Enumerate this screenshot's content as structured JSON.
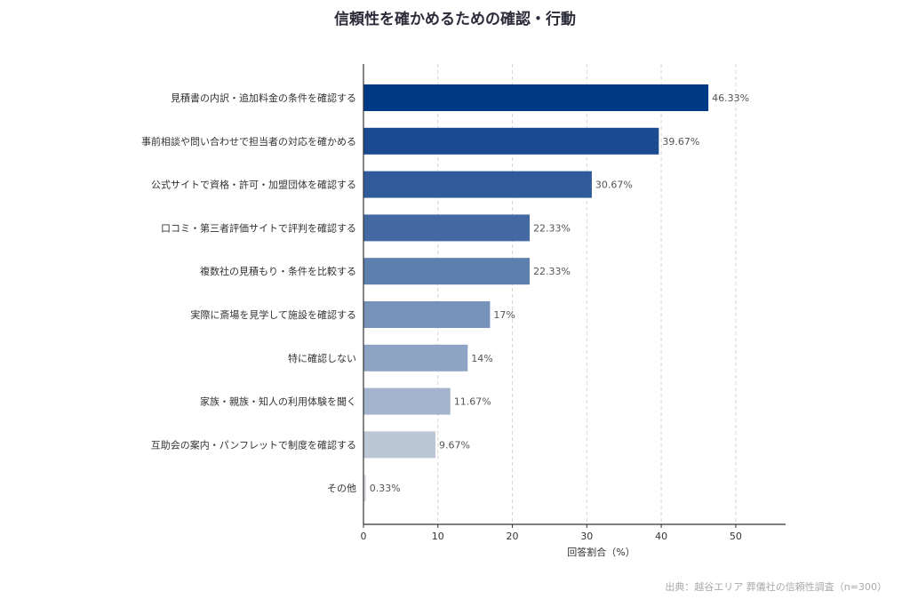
{
  "chart_data": {
    "type": "bar",
    "orientation": "horizontal",
    "title": "信頼性を確かめるための確認・行動",
    "xlabel": "回答割合（%）",
    "ylabel": "",
    "xlim": [
      0,
      56.7
    ],
    "xticks": [
      0,
      10,
      20,
      30,
      40,
      50
    ],
    "grid": "vertical-dashed",
    "categories": [
      "見積書の内訳・追加料金の条件を確認する",
      "事前相談や問い合わせで担当者の対応を確かめる",
      "公式サイトで資格・許可・加盟団体を確認する",
      "口コミ・第三者評価サイトで評判を確認する",
      "複数社の見積もり・条件を比較する",
      "実際に斎場を見学して施設を確認する",
      "特に確認しない",
      "家族・親族・知人の利用体験を聞く",
      "互助会の案内・パンフレットで制度を確認する",
      "その他"
    ],
    "values": [
      46.33,
      39.67,
      30.67,
      22.33,
      22.33,
      17,
      14,
      11.67,
      9.67,
      0.33
    ],
    "value_labels": [
      "46.33%",
      "39.67%",
      "30.67%",
      "22.33%",
      "22.33%",
      "17%",
      "14%",
      "11.67%",
      "9.67%",
      "0.33%"
    ],
    "colors": [
      "#003a87",
      "#1a4a90",
      "#2f5b9a",
      "#4569a3",
      "#5d7fae",
      "#7691ba",
      "#8ea4c5",
      "#a4b4ce",
      "#bcc7d6",
      "#d6dbe2"
    ]
  },
  "source": "出典：越谷エリア 葬儀社の信頼性調査（n=300）"
}
